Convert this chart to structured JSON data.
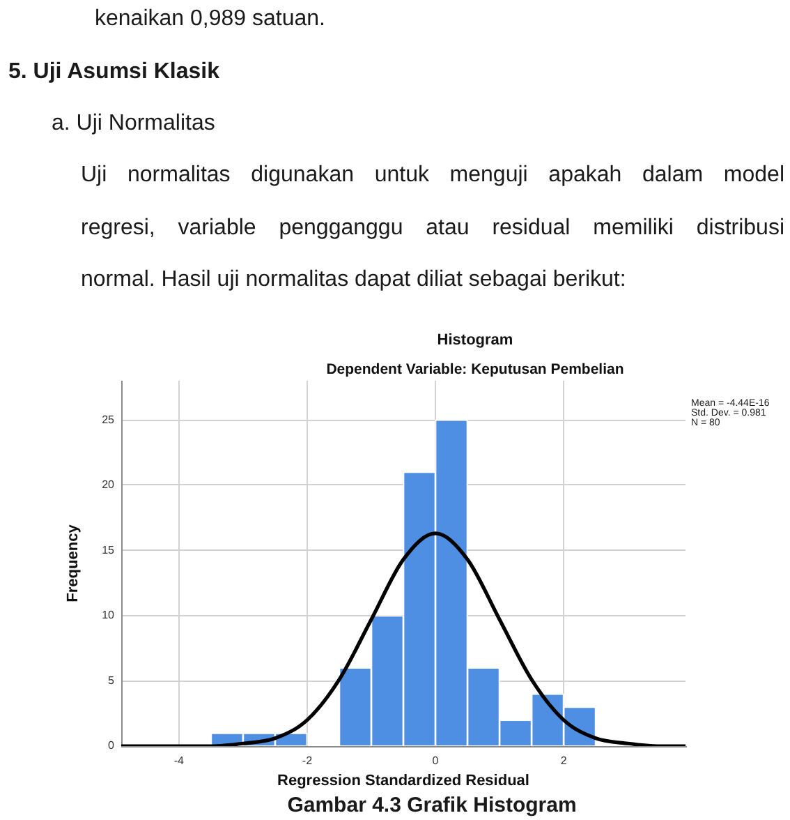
{
  "chart_data": {
    "type": "histogram",
    "title": "Histogram",
    "subtitle": "Dependent Variable: Keputusan Pembelian",
    "xlabel": "Regression Standardized Residual",
    "ylabel": "Frequency",
    "bins": [
      -3.5,
      -3,
      -2.5,
      -2,
      -1.5,
      -1,
      -0.5,
      0,
      0.5,
      1,
      1.5,
      2,
      2.5
    ],
    "values": [
      1,
      1,
      1,
      0,
      6,
      10,
      21,
      25,
      6,
      2,
      4,
      3
    ],
    "color": "#4f8fe3",
    "series": [
      {
        "type": "line",
        "color": "#000000",
        "x": [
          -4.9,
          -4,
          -3.5,
          -3,
          -2.5,
          -2,
          -1.5,
          -1,
          -0.5,
          0,
          0.5,
          1,
          1.5,
          2,
          2.5,
          3,
          3.5,
          3.9
        ],
        "values": [
          0,
          0,
          0,
          0.2,
          0.6,
          2.0,
          5.1,
          9.7,
          14.3,
          16.3,
          14.3,
          9.7,
          5.1,
          2.0,
          0.6,
          0.2,
          0,
          0
        ]
      }
    ],
    "xlim": [
      -4.9,
      3.9
    ],
    "xticks": [
      -4,
      -2,
      0,
      2
    ],
    "ylim": [
      0,
      28
    ],
    "yticks": [
      0,
      5,
      10,
      15,
      20,
      25
    ],
    "grid": true,
    "marker": "none",
    "annotations": [
      "kenaikan 0,989 satuan.",
      "5. Uji Asumsi Klasik",
      "a. Uji Normalitas",
      "Uji normalitas digunakan untuk menguji apakah dalam model",
      "regresi, variable pengganggu atau residual memiliki distribusi",
      "normal. Hasil uji normalitas dapat diliat sebagai berikut:",
      "Mean = -4.44E-16",
      "Std. Dev. = 0.981",
      "N = 80",
      "Gambar 4.3 Grafik Histogram"
    ]
  }
}
